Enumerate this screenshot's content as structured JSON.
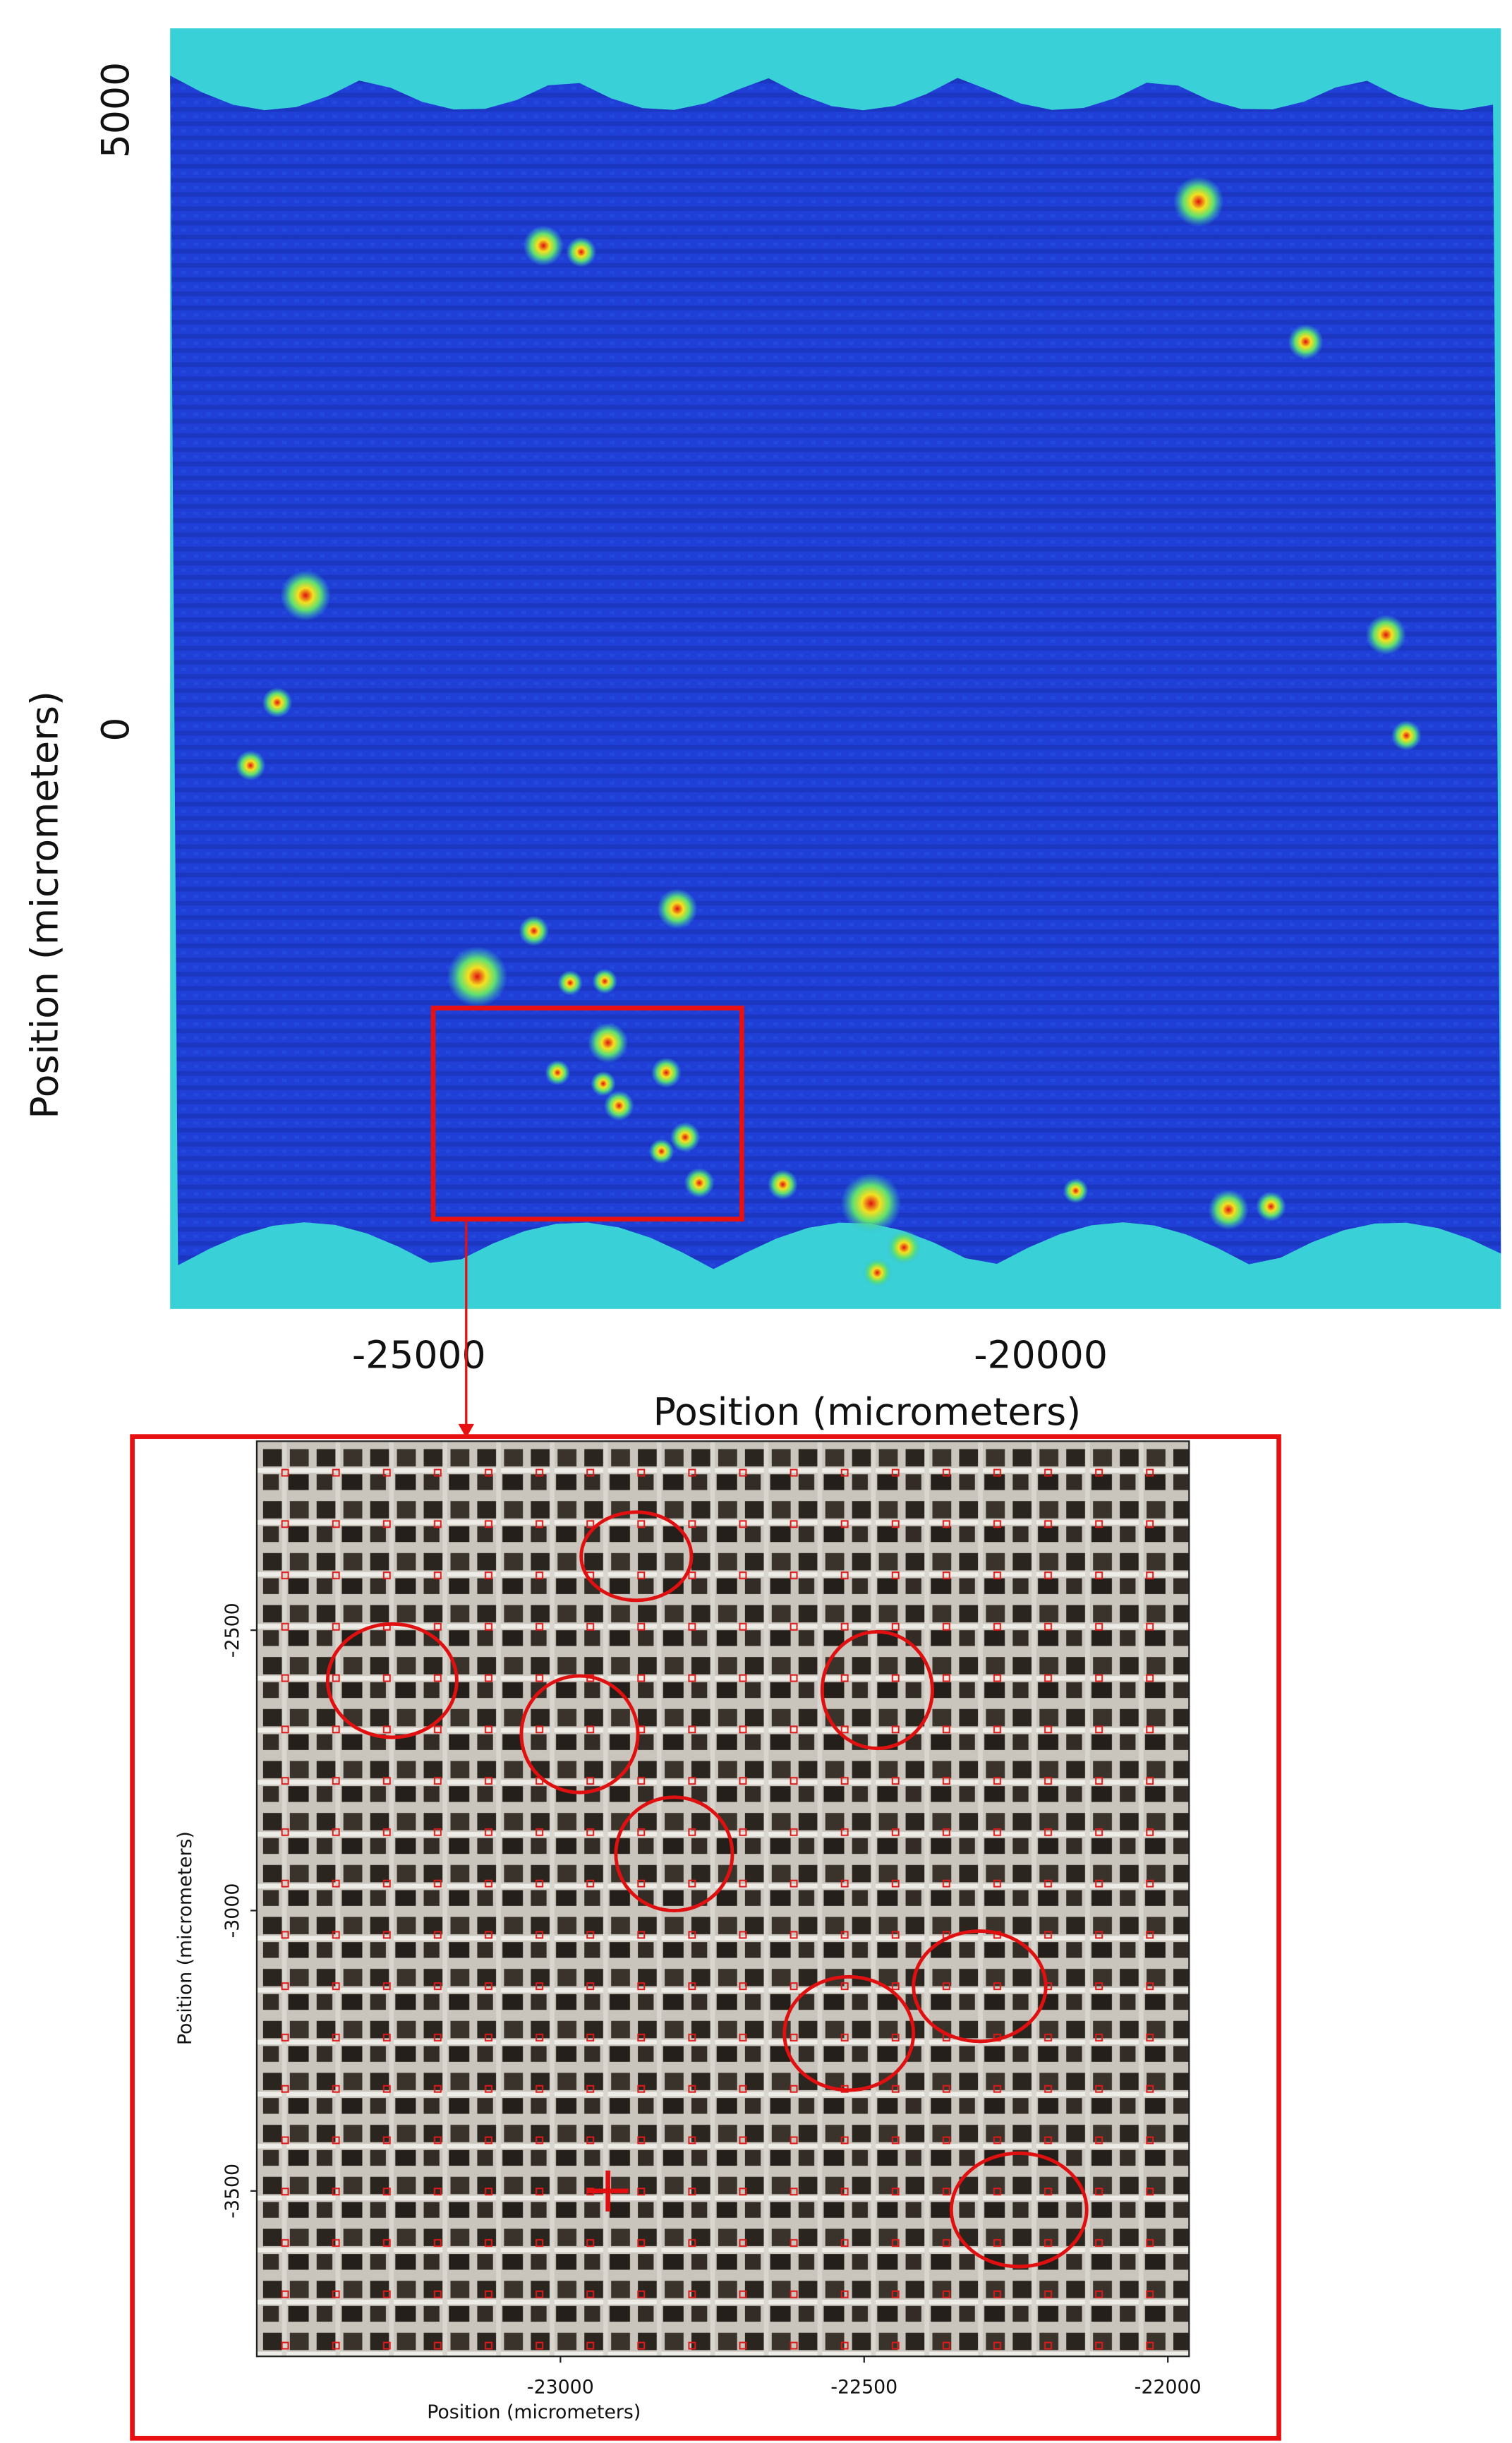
{
  "chart_data": [
    {
      "type": "heatmap",
      "x_label": "Position (micrometers)",
      "y_label": "Position (micrometers)",
      "xlim": [
        -27000,
        -16300
      ],
      "ylim": [
        -4680,
        5660
      ],
      "xticks": [
        -25000,
        -20000
      ],
      "yticks": [
        0,
        5000
      ]
    },
    {
      "type": "image",
      "x_label": "Position (micrometers)",
      "y_label": "Position (micrometers)",
      "xlim": [
        -23500,
        -21965
      ],
      "ylim": [
        -3795,
        -2163
      ],
      "xticks": [
        -23000,
        -22500,
        -22000
      ],
      "yticks": [
        -3500,
        -3000,
        -2500
      ]
    }
  ]
}
